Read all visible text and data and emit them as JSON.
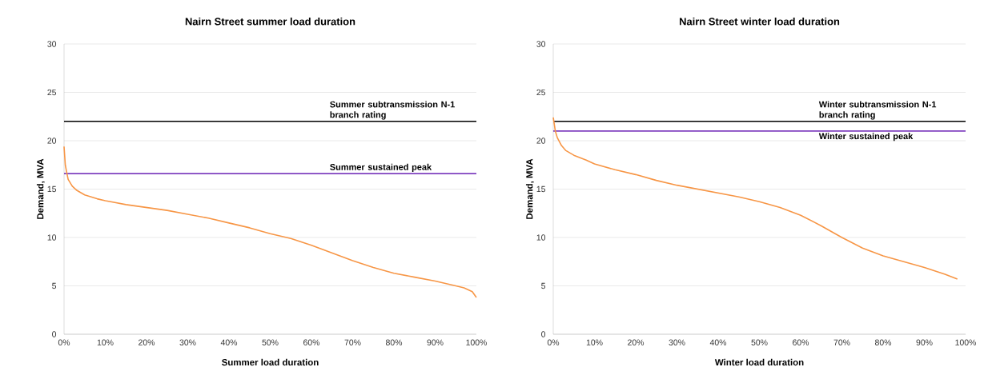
{
  "chart_data": [
    {
      "type": "line",
      "title": "Nairn Street summer load duration",
      "xlabel": "Summer load duration",
      "ylabel": "Demand, MVA",
      "series": [
        {
          "color": "#f79646",
          "x": [
            0,
            0.3,
            0.7,
            1,
            2,
            3,
            5,
            8,
            10,
            15,
            20,
            25,
            30,
            35,
            40,
            45,
            50,
            55,
            60,
            65,
            70,
            75,
            80,
            85,
            90,
            95,
            97,
            99,
            100
          ],
          "values": [
            19.4,
            17.5,
            16.6,
            16,
            15.3,
            14.9,
            14.4,
            14.0,
            13.8,
            13.4,
            13.1,
            12.8,
            12.4,
            12.0,
            11.5,
            11.0,
            10.4,
            9.9,
            9.2,
            8.4,
            7.6,
            6.9,
            6.3,
            5.9,
            5.5,
            5.0,
            4.8,
            4.4,
            3.8
          ]
        }
      ],
      "ref_lines": [
        {
          "axis": "y",
          "value": 22,
          "label": "Summer subtransmission N-1 branch rating",
          "color": "#000000"
        },
        {
          "axis": "y",
          "value": 16.6,
          "label": "Summer sustained peak",
          "color": "#7f3fbf"
        }
      ],
      "xlim": [
        0,
        100
      ],
      "ylim": [
        0,
        30
      ],
      "xticks": [
        {
          "value": 0,
          "label": "0%"
        },
        {
          "value": 10,
          "label": "10%"
        },
        {
          "value": 20,
          "label": "20%"
        },
        {
          "value": 30,
          "label": "30%"
        },
        {
          "value": 40,
          "label": "40%"
        },
        {
          "value": 50,
          "label": "50%"
        },
        {
          "value": 60,
          "label": "60%"
        },
        {
          "value": 70,
          "label": "70%"
        },
        {
          "value": 80,
          "label": "80%"
        },
        {
          "value": 90,
          "label": "90%"
        },
        {
          "value": 100,
          "label": "100%"
        }
      ],
      "yticks": [
        0,
        5,
        10,
        15,
        20,
        25,
        30
      ],
      "grid": "y",
      "marker": "none",
      "line_style": "solid"
    },
    {
      "type": "line",
      "title": "Nairn Street winter load duration",
      "xlabel": "Winter load duration",
      "ylabel": "Demand, MVA",
      "series": [
        {
          "color": "#f79646",
          "x": [
            0,
            0.5,
            1,
            2,
            3,
            5,
            8,
            10,
            15,
            20,
            25,
            30,
            35,
            40,
            45,
            50,
            55,
            60,
            65,
            70,
            75,
            80,
            85,
            90,
            95,
            98
          ],
          "values": [
            22.4,
            21,
            20.3,
            19.5,
            19.0,
            18.5,
            18.0,
            17.6,
            17.0,
            16.5,
            15.9,
            15.4,
            15.0,
            14.6,
            14.2,
            13.7,
            13.1,
            12.3,
            11.2,
            10.0,
            8.9,
            8.1,
            7.5,
            6.9,
            6.2,
            5.7
          ]
        }
      ],
      "ref_lines": [
        {
          "axis": "y",
          "value": 22,
          "label": "Winter subtransmission N-1 branch rating",
          "color": "#000000"
        },
        {
          "axis": "y",
          "value": 21,
          "label": "Winter sustained peak",
          "color": "#7f3fbf"
        }
      ],
      "xlim": [
        0,
        100
      ],
      "ylim": [
        0,
        30
      ],
      "xticks": [
        {
          "value": 0,
          "label": "0%"
        },
        {
          "value": 10,
          "label": "10%"
        },
        {
          "value": 20,
          "label": "20%"
        },
        {
          "value": 30,
          "label": "30%"
        },
        {
          "value": 40,
          "label": "40%"
        },
        {
          "value": 50,
          "label": "50%"
        },
        {
          "value": 60,
          "label": "60%"
        },
        {
          "value": 70,
          "label": "70%"
        },
        {
          "value": 80,
          "label": "80%"
        },
        {
          "value": 90,
          "label": "90%"
        },
        {
          "value": 100,
          "label": "100%"
        }
      ],
      "yticks": [
        0,
        5,
        10,
        15,
        20,
        25,
        30
      ],
      "grid": "y",
      "marker": "none",
      "line_style": "solid"
    }
  ]
}
